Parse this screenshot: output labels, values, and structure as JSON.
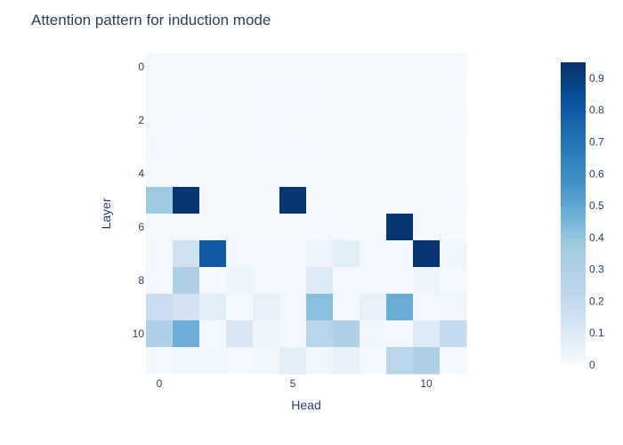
{
  "chart_data": {
    "type": "heatmap",
    "title": "Attention pattern for induction mode",
    "xlabel": "Head",
    "ylabel": "Layer",
    "x": [
      0,
      1,
      2,
      3,
      4,
      5,
      6,
      7,
      8,
      9,
      10,
      11
    ],
    "y": [
      0,
      1,
      2,
      3,
      4,
      5,
      6,
      7,
      8,
      9,
      10,
      11
    ],
    "x_tick_labels": [
      "0",
      "5",
      "10"
    ],
    "x_tick_values": [
      0,
      5,
      10
    ],
    "y_tick_labels": [
      "0",
      "2",
      "4",
      "6",
      "8",
      "10"
    ],
    "y_tick_values": [
      0,
      2,
      4,
      6,
      8,
      10
    ],
    "colorscale": "Blues",
    "zlim": [
      0,
      0.95
    ],
    "colorbar_ticks": [
      "0",
      "0.1",
      "0.2",
      "0.3",
      "0.4",
      "0.5",
      "0.6",
      "0.7",
      "0.8",
      "0.9"
    ],
    "colorbar_values": [
      0,
      0.1,
      0.2,
      0.3,
      0.4,
      0.5,
      0.6,
      0.7,
      0.8,
      0.9
    ],
    "z": [
      [
        0.01,
        0.01,
        0.01,
        0.01,
        0.01,
        0.01,
        0.01,
        0.01,
        0.01,
        0.01,
        0.01,
        0.02
      ],
      [
        0.01,
        0.01,
        0.01,
        0.01,
        0.02,
        0.02,
        0.01,
        0.01,
        0.01,
        0.01,
        0.01,
        0.01
      ],
      [
        0.01,
        0.02,
        0.01,
        0.01,
        0.02,
        0.01,
        0.01,
        0.01,
        0.01,
        0.01,
        0.01,
        0.02
      ],
      [
        0.02,
        0.01,
        0.01,
        0.01,
        0.02,
        0.02,
        0.01,
        0.01,
        0.01,
        0.01,
        0.01,
        0.01
      ],
      [
        0.01,
        0.01,
        0.01,
        0.01,
        0.01,
        0.01,
        0.01,
        0.01,
        0.01,
        0.01,
        0.01,
        0.01
      ],
      [
        0.38,
        0.93,
        0.01,
        0.01,
        0.01,
        0.93,
        0.01,
        0.01,
        0.01,
        0.01,
        0.01,
        0.02
      ],
      [
        0.01,
        0.01,
        0.01,
        0.01,
        0.01,
        0.01,
        0.02,
        0.01,
        0.01,
        0.93,
        0.01,
        0.01
      ],
      [
        0.02,
        0.15,
        0.8,
        0.02,
        0.02,
        0.02,
        0.04,
        0.08,
        0.02,
        0.02,
        0.93,
        0.03
      ],
      [
        0.02,
        0.3,
        0.02,
        0.04,
        0.02,
        0.02,
        0.1,
        0.02,
        0.02,
        0.02,
        0.04,
        0.02
      ],
      [
        0.18,
        0.14,
        0.08,
        0.02,
        0.06,
        0.02,
        0.42,
        0.02,
        0.06,
        0.48,
        0.02,
        0.03
      ],
      [
        0.3,
        0.47,
        0.02,
        0.12,
        0.04,
        0.02,
        0.26,
        0.3,
        0.03,
        0.02,
        0.1,
        0.2
      ],
      [
        0.02,
        0.03,
        0.03,
        0.02,
        0.03,
        0.08,
        0.03,
        0.06,
        0.02,
        0.25,
        0.3,
        0.02
      ]
    ]
  }
}
